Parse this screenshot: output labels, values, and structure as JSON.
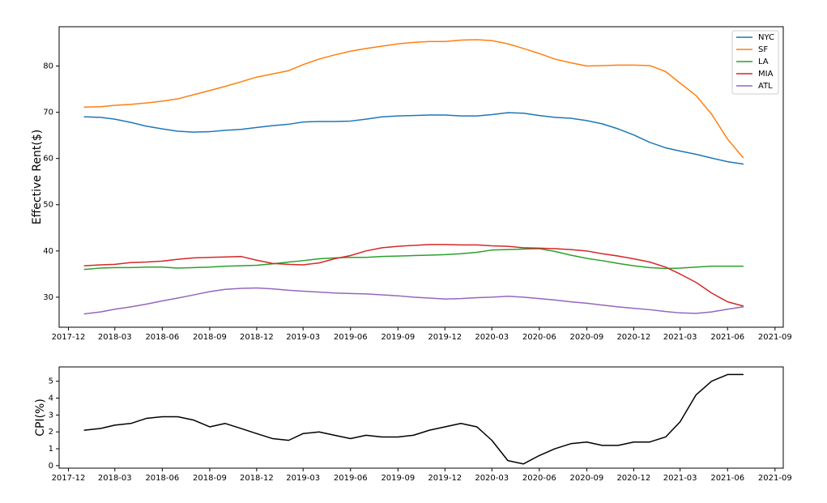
{
  "chart_data": [
    {
      "type": "line",
      "title": "",
      "xlabel": "",
      "ylabel": "Effective Rent($)",
      "x_ticks": [
        "2017-12",
        "2018-03",
        "2018-06",
        "2018-09",
        "2018-12",
        "2019-03",
        "2019-06",
        "2019-09",
        "2019-12",
        "2020-03",
        "2020-06",
        "2020-09",
        "2020-12",
        "2021-03",
        "2021-06",
        "2021-09"
      ],
      "y_ticks": [
        30,
        40,
        50,
        60,
        70,
        80
      ],
      "xlim": [
        "2017-11-13",
        "2021-09-17"
      ],
      "ylim": [
        23.5,
        88.5
      ],
      "grid": false,
      "legend_position": "top-right",
      "x": [
        "2018-01",
        "2018-02",
        "2018-03",
        "2018-04",
        "2018-05",
        "2018-06",
        "2018-07",
        "2018-08",
        "2018-09",
        "2018-10",
        "2018-11",
        "2018-12",
        "2019-01",
        "2019-02",
        "2019-03",
        "2019-04",
        "2019-05",
        "2019-06",
        "2019-07",
        "2019-08",
        "2019-09",
        "2019-10",
        "2019-11",
        "2019-12",
        "2020-01",
        "2020-02",
        "2020-03",
        "2020-04",
        "2020-05",
        "2020-06",
        "2020-07",
        "2020-08",
        "2020-09",
        "2020-10",
        "2020-11",
        "2020-12",
        "2021-01",
        "2021-02",
        "2021-03",
        "2021-04",
        "2021-05",
        "2021-06",
        "2021-07"
      ],
      "series": [
        {
          "name": "NYC",
          "color": "#1f77b4",
          "values": [
            69.0,
            68.9,
            68.5,
            67.8,
            67.0,
            66.4,
            65.9,
            65.7,
            65.8,
            66.1,
            66.3,
            66.7,
            67.1,
            67.4,
            67.9,
            68.0,
            68.0,
            68.1,
            68.5,
            69.0,
            69.2,
            69.3,
            69.4,
            69.4,
            69.2,
            69.2,
            69.5,
            69.9,
            69.8,
            69.3,
            68.9,
            68.7,
            68.2,
            67.5,
            66.4,
            65.1,
            63.5,
            62.3,
            61.6,
            60.9,
            60.1,
            59.3,
            58.8
          ]
        },
        {
          "name": "SF",
          "color": "#ff7f0e",
          "values": [
            71.1,
            71.2,
            71.5,
            71.7,
            72.0,
            72.4,
            72.9,
            73.8,
            74.7,
            75.6,
            76.6,
            77.6,
            78.3,
            79.0,
            80.3,
            81.5,
            82.4,
            83.2,
            83.8,
            84.3,
            84.8,
            85.1,
            85.3,
            85.3,
            85.6,
            85.7,
            85.5,
            84.8,
            83.8,
            82.7,
            81.5,
            80.7,
            80.0,
            80.1,
            80.2,
            80.2,
            80.1,
            78.8,
            76.3,
            73.6,
            69.6,
            64.2,
            60.2
          ]
        },
        {
          "name": "LA",
          "color": "#2ca02c",
          "values": [
            36.0,
            36.3,
            36.4,
            36.4,
            36.5,
            36.5,
            36.3,
            36.4,
            36.5,
            36.7,
            36.8,
            36.9,
            37.2,
            37.6,
            37.9,
            38.3,
            38.5,
            38.6,
            38.6,
            38.8,
            38.9,
            39.0,
            39.1,
            39.2,
            39.4,
            39.7,
            40.2,
            40.3,
            40.4,
            40.5,
            39.9,
            39.1,
            38.4,
            37.9,
            37.3,
            36.8,
            36.4,
            36.2,
            36.3,
            36.5,
            36.7,
            36.7,
            36.7
          ]
        },
        {
          "name": "MIA",
          "color": "#d62728",
          "values": [
            36.8,
            37.0,
            37.1,
            37.5,
            37.6,
            37.8,
            38.2,
            38.5,
            38.6,
            38.7,
            38.8,
            38.0,
            37.3,
            37.1,
            37.0,
            37.4,
            38.3,
            39.0,
            40.0,
            40.7,
            41.0,
            41.2,
            41.4,
            41.4,
            41.3,
            41.3,
            41.1,
            41.0,
            40.7,
            40.6,
            40.5,
            40.3,
            40.0,
            39.4,
            38.9,
            38.3,
            37.6,
            36.5,
            35.0,
            33.2,
            30.9,
            29.0,
            28.1
          ]
        },
        {
          "name": "ATL",
          "color": "#9467bd",
          "values": [
            26.4,
            26.8,
            27.4,
            27.9,
            28.5,
            29.2,
            29.8,
            30.5,
            31.2,
            31.7,
            31.9,
            32.0,
            31.8,
            31.5,
            31.3,
            31.1,
            30.9,
            30.8,
            30.7,
            30.5,
            30.3,
            30.0,
            29.8,
            29.6,
            29.7,
            29.9,
            30.0,
            30.2,
            30.0,
            29.7,
            29.4,
            29.0,
            28.7,
            28.3,
            27.9,
            27.6,
            27.3,
            26.9,
            26.6,
            26.5,
            26.8,
            27.4,
            27.9
          ]
        }
      ]
    },
    {
      "type": "line",
      "title": "",
      "xlabel": "",
      "ylabel": "CPI(%)",
      "x_ticks": [
        "2017-12",
        "2018-03",
        "2018-06",
        "2018-09",
        "2018-12",
        "2019-03",
        "2019-06",
        "2019-09",
        "2019-12",
        "2020-03",
        "2020-06",
        "2020-09",
        "2020-12",
        "2021-03",
        "2021-06",
        "2021-09"
      ],
      "y_ticks": [
        0,
        1,
        2,
        3,
        4,
        5
      ],
      "xlim": [
        "2017-11-13",
        "2021-09-17"
      ],
      "ylim": [
        -0.15,
        5.85
      ],
      "grid": false,
      "x": [
        "2018-01",
        "2018-02",
        "2018-03",
        "2018-04",
        "2018-05",
        "2018-06",
        "2018-07",
        "2018-08",
        "2018-09",
        "2018-10",
        "2018-11",
        "2018-12",
        "2019-01",
        "2019-02",
        "2019-03",
        "2019-04",
        "2019-05",
        "2019-06",
        "2019-07",
        "2019-08",
        "2019-09",
        "2019-10",
        "2019-11",
        "2019-12",
        "2020-01",
        "2020-02",
        "2020-03",
        "2020-04",
        "2020-05",
        "2020-06",
        "2020-07",
        "2020-08",
        "2020-09",
        "2020-10",
        "2020-11",
        "2020-12",
        "2021-01",
        "2021-02",
        "2021-03",
        "2021-04",
        "2021-05",
        "2021-06",
        "2021-07"
      ],
      "series": [
        {
          "color": "#000000",
          "values": [
            2.1,
            2.2,
            2.4,
            2.5,
            2.8,
            2.9,
            2.9,
            2.7,
            2.3,
            2.5,
            2.2,
            1.9,
            1.6,
            1.5,
            1.9,
            2.0,
            1.8,
            1.6,
            1.8,
            1.7,
            1.7,
            1.8,
            2.1,
            2.3,
            2.5,
            2.3,
            1.5,
            0.3,
            0.1,
            0.6,
            1.0,
            1.3,
            1.4,
            1.2,
            1.2,
            1.4,
            1.4,
            1.7,
            2.6,
            4.2,
            5.0,
            5.4,
            5.4
          ]
        }
      ]
    }
  ]
}
